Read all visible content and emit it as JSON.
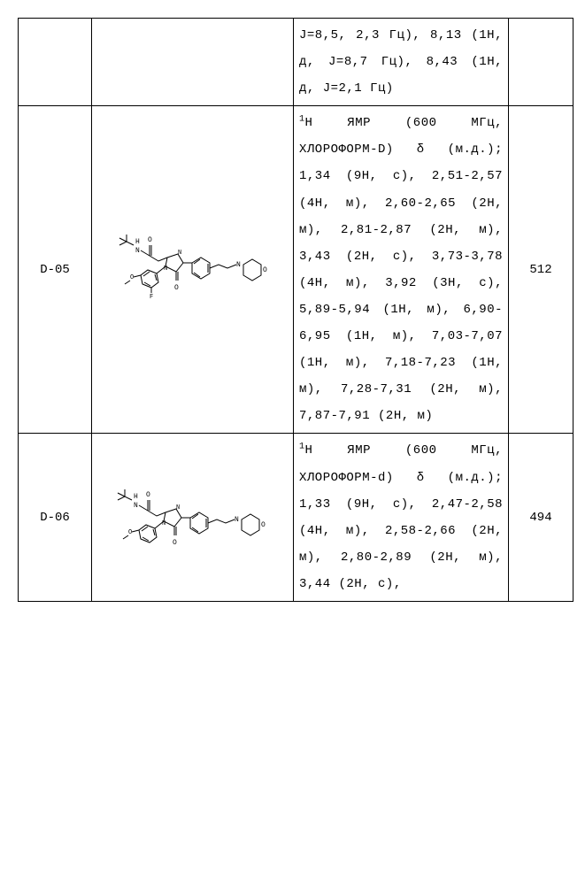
{
  "rows": [
    {
      "id": "",
      "structure": null,
      "nmr_html": "J=8,5, 2,3 Гц), 8,13 (1H, д, J=8,7 Гц), 8,43 (1H, д, J=2,1 Гц)",
      "mass": ""
    },
    {
      "id": "D-05",
      "structure": "mol1",
      "nmr_html": "<span class=\"sup\">1</span>H ЯМР (600 МГц, ХЛОРОФОРМ-D) δ (м.д.); 1,34 (9H, с), 2,51-2,57 (4H, м), 2,60-2,65 (2H, м), 2,81-2,87 (2H, м), 3,43 (2H, с), 3,73-3,78 (4H, м), 3,92 (3H, с), 5,89-5,94 (1H, м), 6,90-6,95 (1H, м), 7,03-7,07 (1H, м), 7,18-7,23 (1H, м), 7,28-7,31 (2H, м), 7,87-7,91 (2H, м)",
      "mass": "512"
    },
    {
      "id": "D-06",
      "structure": "mol2",
      "nmr_html": "<span class=\"sup\">1</span>H ЯМР (600 МГц, ХЛОРОФОРМ-d) δ (м.д.); 1,33 (9H, с), 2,47-2,58 (4H, м), 2,58-2,66 (2H, м), 2,80-2,89 (2H, м), 3,44 (2H, с),",
      "mass": "494"
    }
  ],
  "structures": {
    "mol1": {
      "label_top": "H",
      "label_o": "O",
      "label_no": "N",
      "label_f": "F",
      "label_och3_left": true,
      "label_morpholine": true
    },
    "mol2": {
      "label_top": "H",
      "label_o": "O",
      "label_no": "N",
      "label_och3_left": true,
      "label_morpholine": true,
      "label_f": null
    }
  },
  "colors": {
    "stroke": "#000000",
    "bg": "#ffffff"
  }
}
